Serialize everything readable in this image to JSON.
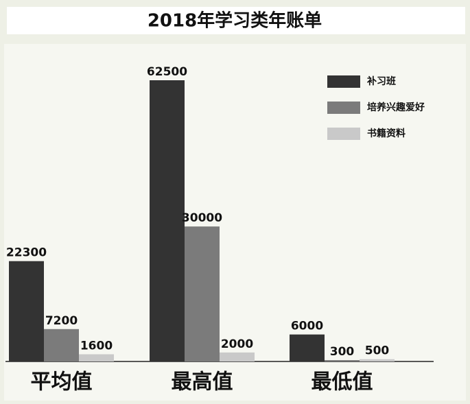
{
  "chart_data": {
    "type": "bar",
    "title": "2018年学习类年账单",
    "categories": [
      "平均值",
      "最高值",
      "最低值"
    ],
    "series": [
      {
        "name": "补习班",
        "color": "#333333",
        "values": [
          22300,
          62500,
          6000
        ]
      },
      {
        "name": "培养兴趣爱好",
        "color": "#7b7b7b",
        "values": [
          7200,
          30000,
          300
        ]
      },
      {
        "name": "书籍资料",
        "color": "#c9c9c9",
        "values": [
          1600,
          2000,
          500
        ]
      }
    ],
    "legend": "top-right"
  }
}
